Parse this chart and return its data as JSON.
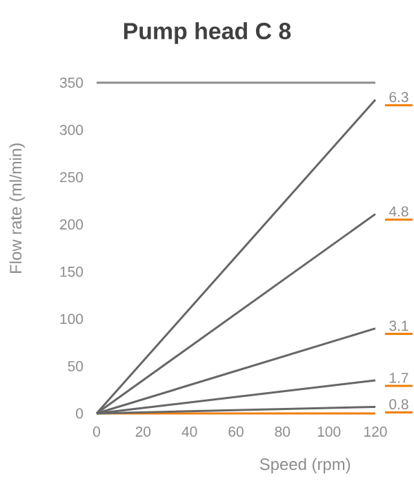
{
  "chart_data": {
    "type": "line",
    "title": "Pump head C 8",
    "xlabel": "Speed (rpm)",
    "ylabel": "Flow rate (ml/min)",
    "x": [
      0,
      120
    ],
    "series": [
      {
        "name": "6.3",
        "color": "#666666",
        "values": [
          0,
          332
        ]
      },
      {
        "name": "4.8",
        "color": "#666666",
        "values": [
          0,
          211
        ]
      },
      {
        "name": "3.1",
        "color": "#666666",
        "values": [
          0,
          90
        ]
      },
      {
        "name": "1.7",
        "color": "#666666",
        "values": [
          0,
          35
        ]
      },
      {
        "name": "0.8",
        "color": "#666666",
        "values": [
          0,
          7
        ]
      }
    ],
    "xlim": [
      0,
      120
    ],
    "ylim": [
      0,
      350
    ],
    "xticks": [
      0,
      20,
      40,
      60,
      80,
      100,
      120
    ],
    "yticks": [
      0,
      50,
      100,
      150,
      200,
      250,
      300,
      350
    ],
    "ref_lines": [
      {
        "axis": "y",
        "value": 350,
        "color": "#8c8c8c"
      }
    ],
    "marker": "none",
    "line_style": "solid"
  }
}
